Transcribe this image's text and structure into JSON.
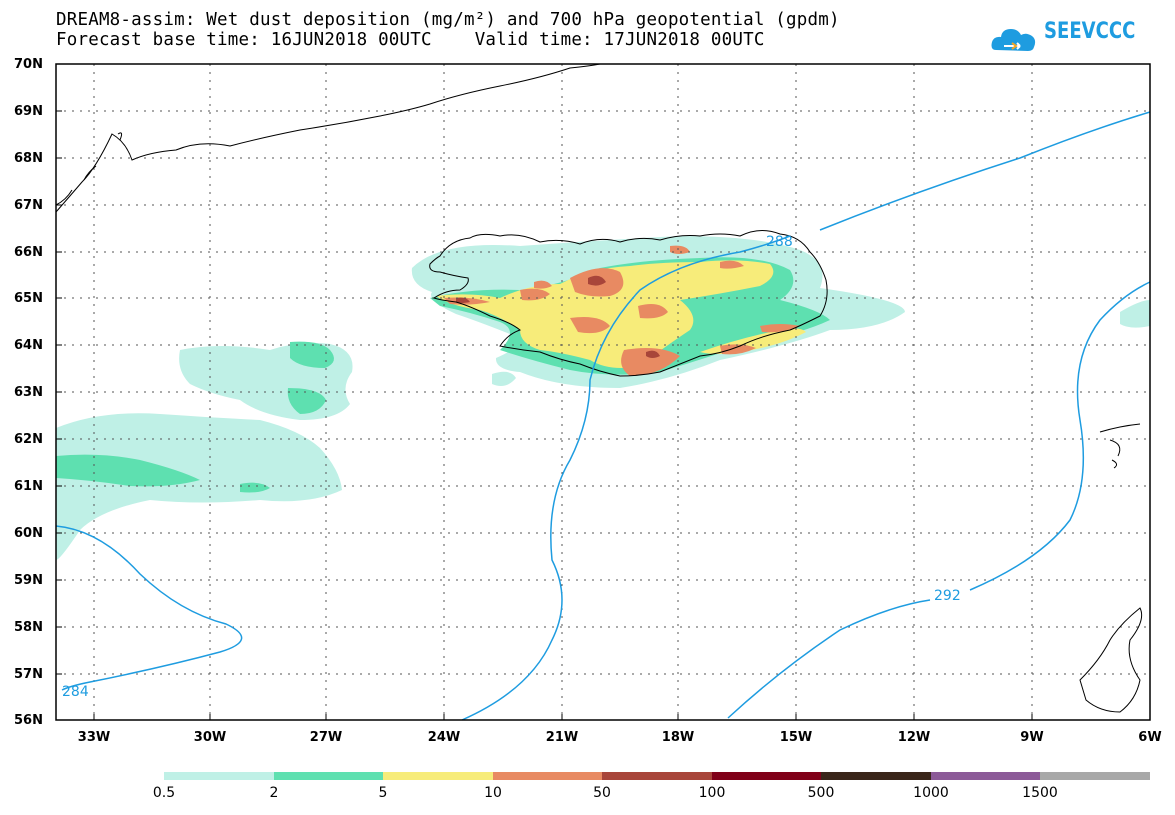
{
  "header": {
    "title_line1": "DREAM8-assim: Wet dust deposition (mg/m²) and 700 hPa geopotential (gpdm)",
    "title_line2": "Forecast base time: 16JUN2018 00UTC    Valid time: 17JUN2018 00UTC",
    "logo_text": "SEEVCCC"
  },
  "axes": {
    "lat_labels": [
      "70N",
      "69N",
      "68N",
      "67N",
      "66N",
      "65N",
      "64N",
      "63N",
      "62N",
      "61N",
      "60N",
      "59N",
      "58N",
      "57N",
      "56N"
    ],
    "lon_labels": [
      "33W",
      "30W",
      "27W",
      "24W",
      "21W",
      "18W",
      "15W",
      "12W",
      "9W",
      "6W"
    ]
  },
  "contours": {
    "labels": [
      "288",
      "292",
      "284"
    ],
    "line_color": "#1e9ce0"
  },
  "colorbar": {
    "labels": [
      "0.5",
      "2",
      "5",
      "10",
      "50",
      "100",
      "500",
      "1000",
      "1500"
    ],
    "colors": [
      "#bff0e6",
      "#5ee0b0",
      "#f7ec7a",
      "#e88a62",
      "#a8453a",
      "#800018",
      "#3a261a",
      "#8c5a98",
      "#a8a8a8"
    ]
  }
}
